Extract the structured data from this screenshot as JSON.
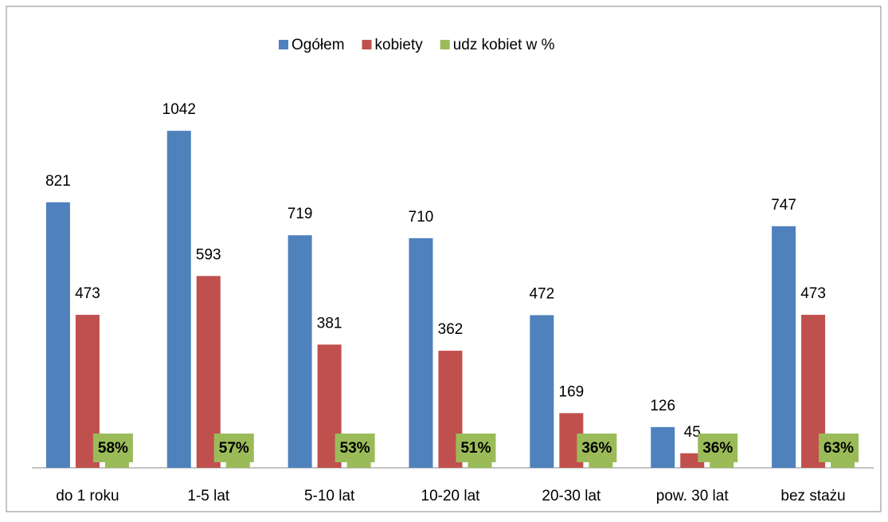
{
  "chart_data": {
    "type": "bar",
    "categories": [
      "do 1 roku",
      "1-5 lat",
      "5-10 lat",
      "10-20 lat",
      "20-30 lat",
      "pow. 30 lat",
      "bez stażu"
    ],
    "series": [
      {
        "name": "Ogółem",
        "color": "#4f81bd",
        "values": [
          821,
          1042,
          719,
          710,
          472,
          126,
          747
        ]
      },
      {
        "name": "kobiety",
        "color": "#c0504d",
        "values": [
          473,
          593,
          381,
          362,
          169,
          45,
          473
        ]
      },
      {
        "name": "udz kobiet w %",
        "color": "#9bbb59",
        "values": [
          58,
          57,
          53,
          51,
          36,
          36,
          63
        ],
        "value_labels": [
          "58%",
          "57%",
          "53%",
          "51%",
          "36%",
          "36%",
          "63%"
        ]
      }
    ],
    "ylim": [
      0,
      1200
    ],
    "legend": "top"
  }
}
